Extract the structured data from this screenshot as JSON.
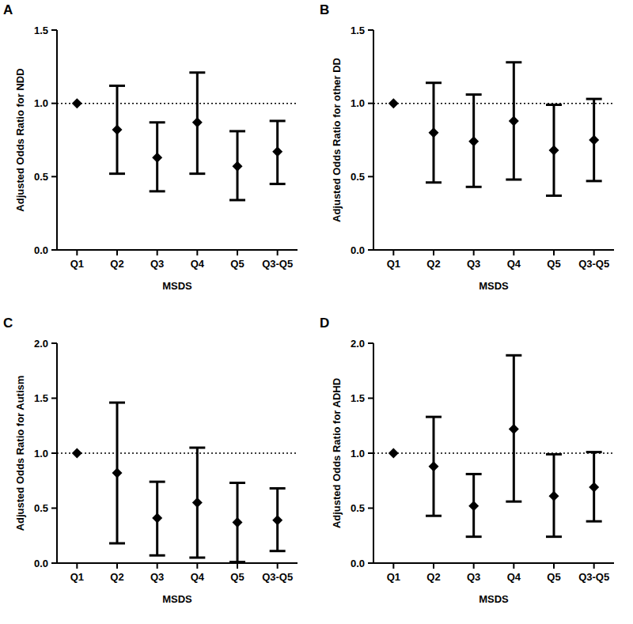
{
  "chart_data": [
    {
      "type": "scatter",
      "title": "A",
      "y_label": "Adjusted Odds Ratio for NDD",
      "x_label": "MSDS",
      "categories": [
        "Q1",
        "Q2",
        "Q3",
        "Q4",
        "Q5",
        "Q3-Q5"
      ],
      "values": [
        1.0,
        0.82,
        0.63,
        0.87,
        0.57,
        0.67
      ],
      "lower": [
        null,
        0.52,
        0.4,
        0.52,
        0.34,
        0.45
      ],
      "upper": [
        null,
        1.12,
        0.87,
        1.21,
        0.81,
        0.88
      ],
      "reference_line": 1,
      "ylim": [
        0,
        1.5
      ],
      "yticks": [
        {
          "value": 0,
          "label": "0.0"
        },
        {
          "value": 0.5,
          "label": "0.5"
        },
        {
          "value": 1,
          "label": "1.0"
        },
        {
          "value": 1.5,
          "label": "1.5"
        }
      ],
      "color": "#000000",
      "marker": "diamond",
      "grid": false
    },
    {
      "type": "scatter",
      "title": "B",
      "y_label": "Adjusted Odds Ratio for other DD",
      "x_label": "MSDS",
      "categories": [
        "Q1",
        "Q2",
        "Q3",
        "Q4",
        "Q5",
        "Q3-Q5"
      ],
      "values": [
        1.0,
        0.8,
        0.74,
        0.88,
        0.68,
        0.75
      ],
      "lower": [
        null,
        0.46,
        0.43,
        0.48,
        0.37,
        0.47
      ],
      "upper": [
        null,
        1.14,
        1.06,
        1.28,
        0.99,
        1.03
      ],
      "reference_line": 1,
      "ylim": [
        0,
        1.5
      ],
      "yticks": [
        {
          "value": 0,
          "label": "0.0"
        },
        {
          "value": 0.5,
          "label": "0.5"
        },
        {
          "value": 1,
          "label": "1.0"
        },
        {
          "value": 1.5,
          "label": "1.5"
        }
      ],
      "color": "#000000",
      "marker": "diamond",
      "grid": false
    },
    {
      "type": "scatter",
      "title": "C",
      "y_label": "Adjusted Odds Ratio for Autism",
      "x_label": "MSDS",
      "categories": [
        "Q1",
        "Q2",
        "Q3",
        "Q4",
        "Q5",
        "Q3-Q5"
      ],
      "values": [
        1.0,
        0.82,
        0.41,
        0.55,
        0.37,
        0.39
      ],
      "lower": [
        null,
        0.18,
        0.07,
        0.05,
        0.01,
        0.11
      ],
      "upper": [
        null,
        1.46,
        0.74,
        1.05,
        0.73,
        0.68
      ],
      "reference_line": 1,
      "ylim": [
        0,
        2
      ],
      "yticks": [
        {
          "value": 0,
          "label": "0.0"
        },
        {
          "value": 0.5,
          "label": "0.5"
        },
        {
          "value": 1,
          "label": "1.0"
        },
        {
          "value": 1.5,
          "label": "1.5"
        },
        {
          "value": 2,
          "label": "2.0"
        }
      ],
      "color": "#000000",
      "marker": "diamond",
      "grid": false
    },
    {
      "type": "scatter",
      "title": "D",
      "y_label": "Adjusted Odds Ratio for ADHD",
      "x_label": "MSDS",
      "categories": [
        "Q1",
        "Q2",
        "Q3",
        "Q4",
        "Q5",
        "Q3-Q5"
      ],
      "values": [
        1.0,
        0.88,
        0.52,
        1.22,
        0.61,
        0.69
      ],
      "lower": [
        null,
        0.43,
        0.24,
        0.56,
        0.24,
        0.38
      ],
      "upper": [
        null,
        1.33,
        0.81,
        1.89,
        0.99,
        1.01
      ],
      "reference_line": 1,
      "ylim": [
        0,
        2
      ],
      "yticks": [
        {
          "value": 0,
          "label": "0.0"
        },
        {
          "value": 0.5,
          "label": "0.5"
        },
        {
          "value": 1,
          "label": "1.0"
        },
        {
          "value": 1.5,
          "label": "1.5"
        },
        {
          "value": 2,
          "label": "2.0"
        }
      ],
      "color": "#000000",
      "marker": "diamond",
      "grid": false
    }
  ]
}
